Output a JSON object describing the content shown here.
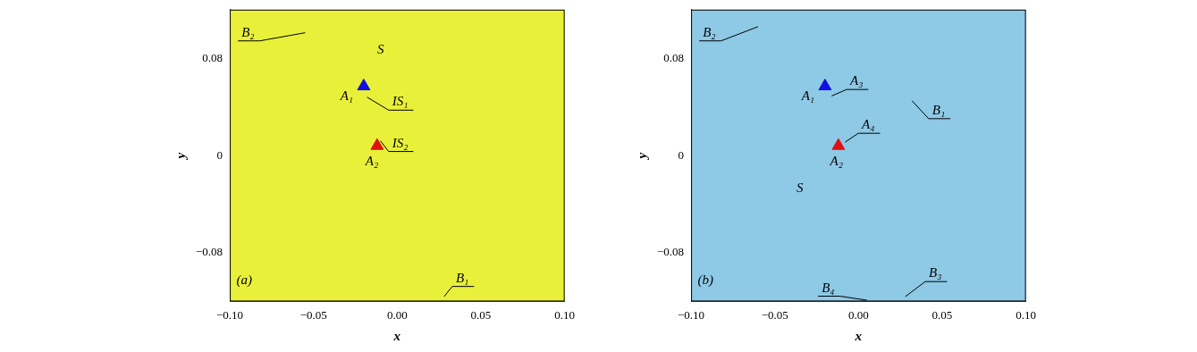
{
  "chart_data": [
    {
      "type": "scatter",
      "x_label": "x",
      "y_label": "y",
      "xlim": [
        -0.1,
        0.1
      ],
      "ylim": [
        -0.12,
        0.12
      ],
      "xticks": [
        {
          "value": -0.1,
          "label": "−0.10"
        },
        {
          "value": -0.05,
          "label": "−0.05"
        },
        {
          "value": 0,
          "label": "0.00"
        },
        {
          "value": 0.05,
          "label": "0.05"
        },
        {
          "value": 0.1,
          "label": "0.10"
        }
      ],
      "yticks": [
        {
          "value": -0.08,
          "label": "−0.08"
        },
        0,
        0.08
      ],
      "grid": false,
      "series": [
        {
          "color": "#1010e0",
          "marker": "triangle",
          "x": [
            -0.02
          ],
          "values": [
            0.057
          ]
        },
        {
          "color": "#e01010",
          "marker": "triangle",
          "x": [
            -0.012
          ],
          "values": [
            0.008
          ]
        }
      ],
      "annotations": [
        {
          "text": "B₂",
          "x": -0.093,
          "y": 0.098,
          "pointer": [
            -0.055,
            0.101
          ]
        },
        {
          "text": "S",
          "x": -0.012,
          "y": 0.084
        },
        {
          "text": "A₁",
          "x": -0.034,
          "y": 0.046
        },
        {
          "text": "IS₁",
          "x": -0.003,
          "y": 0.041,
          "pointer": [
            -0.018,
            0.048
          ]
        },
        {
          "text": "A₂",
          "x": -0.019,
          "y": -0.008
        },
        {
          "text": "IS₂",
          "x": -0.003,
          "y": 0.007,
          "pointer": [
            -0.01,
            0.012
          ]
        },
        {
          "text": "B₁",
          "x": 0.035,
          "y": -0.104,
          "pointer": [
            0.028,
            -0.116
          ]
        },
        {
          "text": "(a)",
          "x": -0.096,
          "y": -0.106
        }
      ]
    },
    {
      "type": "scatter",
      "x_label": "x",
      "y_label": "y",
      "xlim": [
        -0.1,
        0.1
      ],
      "ylim": [
        -0.12,
        0.12
      ],
      "xticks": [
        {
          "value": -0.1,
          "label": "−0.10"
        },
        {
          "value": -0.05,
          "label": "−0.05"
        },
        {
          "value": 0,
          "label": "0.00"
        },
        {
          "value": 0.05,
          "label": "0.05"
        },
        {
          "value": 0.1,
          "label": "0.10"
        }
      ],
      "yticks": [
        {
          "value": -0.08,
          "label": "−0.08"
        },
        0,
        0.08
      ],
      "grid": false,
      "series": [
        {
          "color": "#1010e0",
          "marker": "triangle",
          "x": [
            -0.02
          ],
          "values": [
            0.057
          ]
        },
        {
          "color": "#e01010",
          "marker": "triangle",
          "x": [
            -0.012
          ],
          "values": [
            0.008
          ]
        }
      ],
      "annotations": [
        {
          "text": "B₂",
          "x": -0.093,
          "y": 0.098,
          "pointer": [
            -0.06,
            0.106
          ]
        },
        {
          "text": "A₁",
          "x": -0.034,
          "y": 0.046
        },
        {
          "text": "A₃",
          "x": -0.005,
          "y": 0.058,
          "pointer": [
            -0.016,
            0.049
          ]
        },
        {
          "text": "A₄",
          "x": 0.002,
          "y": 0.022,
          "pointer": [
            -0.008,
            0.011
          ]
        },
        {
          "text": "A₂",
          "x": -0.017,
          "y": -0.008
        },
        {
          "text": "B₁",
          "x": 0.044,
          "y": 0.034,
          "pointer": [
            0.032,
            0.045
          ]
        },
        {
          "text": "S",
          "x": -0.037,
          "y": -0.03
        },
        {
          "text": "B₃",
          "x": 0.042,
          "y": -0.1,
          "pointer": [
            0.028,
            -0.116
          ]
        },
        {
          "text": "B₄",
          "x": -0.022,
          "y": -0.112,
          "pointer": [
            0.005,
            -0.119
          ]
        },
        {
          "text": "(b)",
          "x": -0.096,
          "y": -0.106
        }
      ]
    }
  ]
}
